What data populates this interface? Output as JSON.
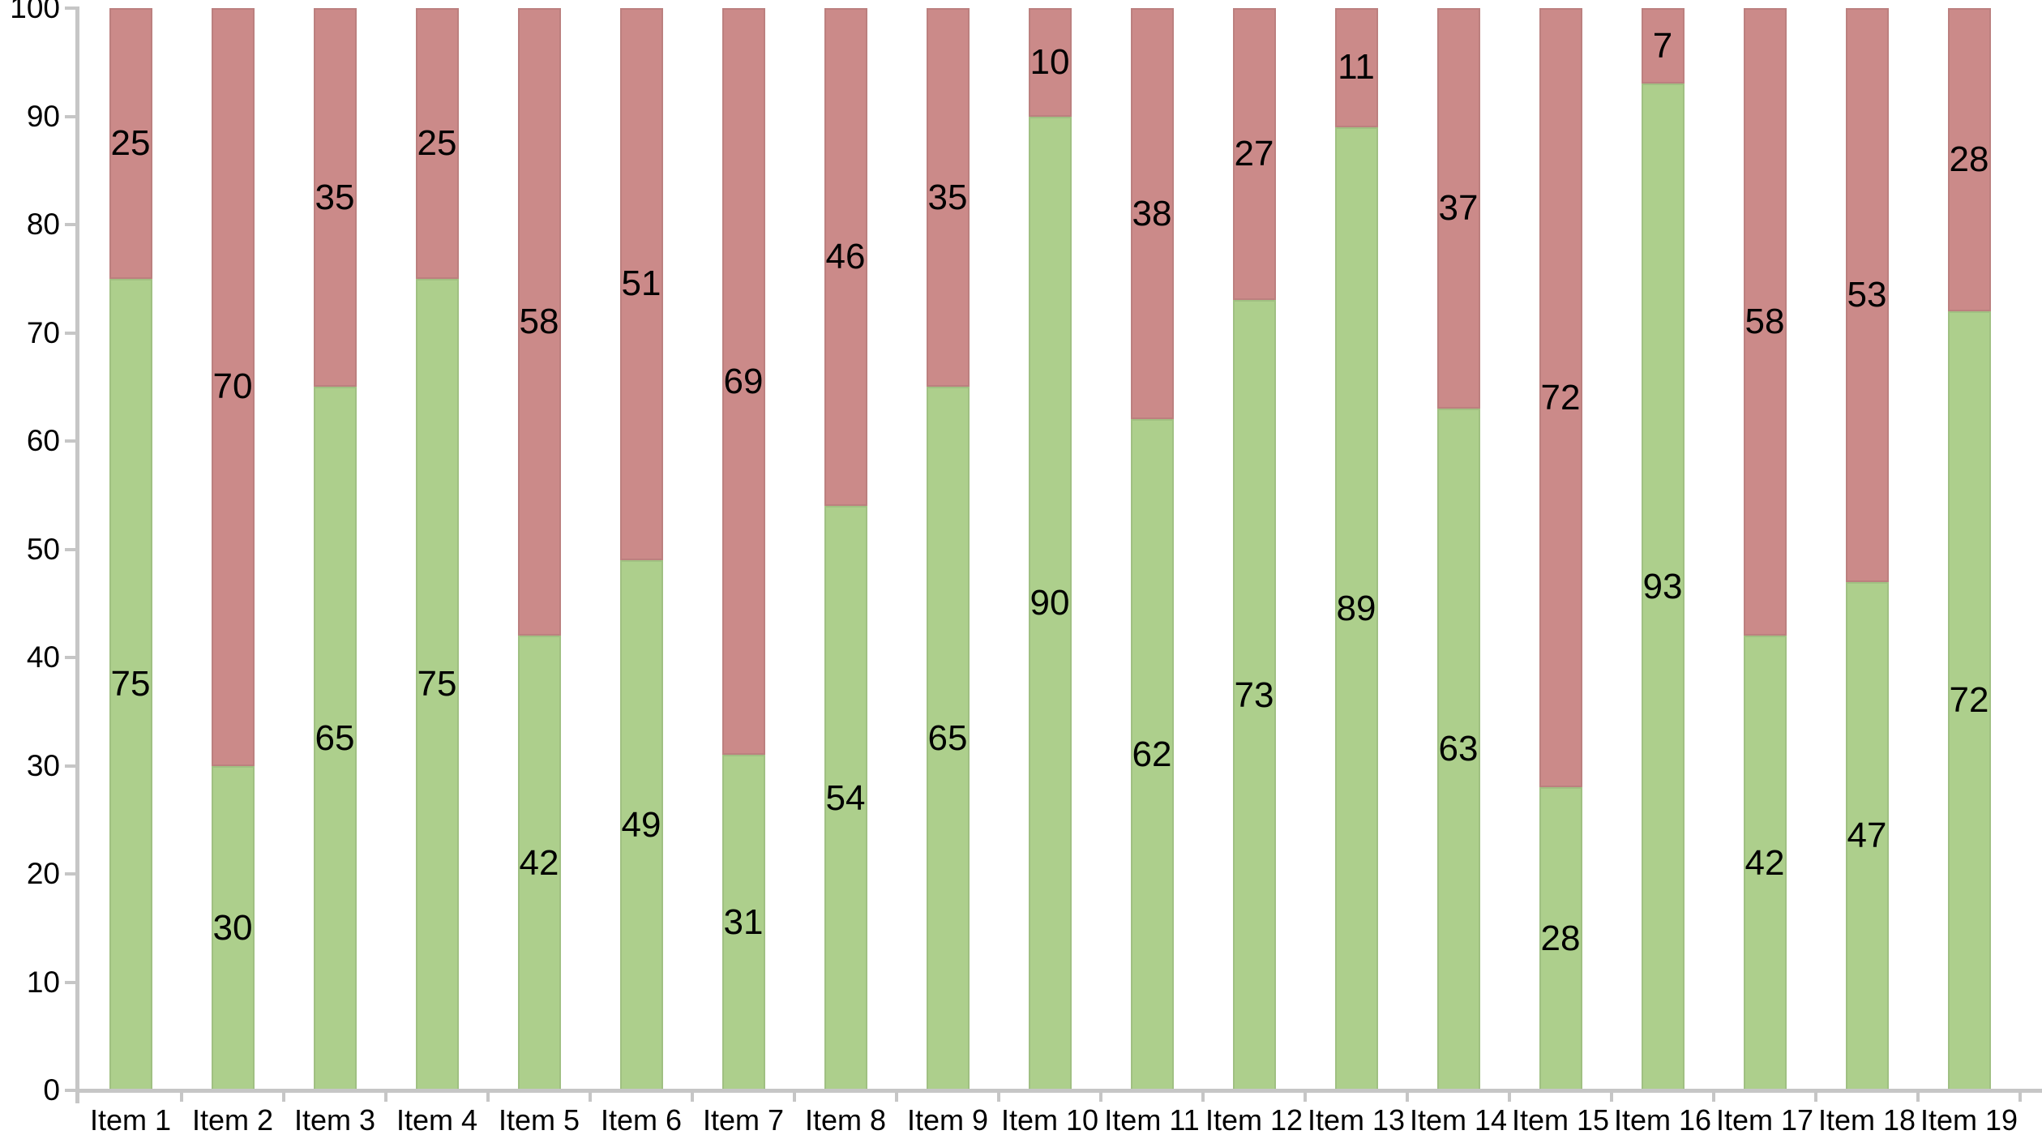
{
  "chart_data": {
    "type": "bar",
    "stacked": true,
    "title": "",
    "xlabel": "",
    "ylabel": "",
    "categories": [
      "Item 1",
      "Item 2",
      "Item 3",
      "Item 4",
      "Item 5",
      "Item 6",
      "Item 7",
      "Item 8",
      "Item 9",
      "Item 10",
      "Item 11",
      "Item 12",
      "Item 13",
      "Item 14",
      "Item 15",
      "Item 16",
      "Item 17",
      "Item 18",
      "Item 19"
    ],
    "series": [
      {
        "name": "bottom-green-segment",
        "color": "#ADCF8C",
        "values": [
          75,
          30,
          65,
          75,
          42,
          49,
          31,
          54,
          65,
          90,
          62,
          73,
          89,
          63,
          28,
          93,
          42,
          47,
          72
        ]
      },
      {
        "name": "top-red-segment",
        "color": "#CB8A89",
        "values": [
          25,
          70,
          35,
          25,
          58,
          51,
          69,
          46,
          35,
          10,
          38,
          27,
          11,
          37,
          72,
          7,
          58,
          53,
          28
        ]
      }
    ],
    "ylim": [
      0,
      100
    ],
    "yticks": [
      0,
      10,
      20,
      30,
      40,
      50,
      60,
      70,
      80,
      90,
      100
    ],
    "grid": false,
    "legend": "none",
    "value_labels": true,
    "axis_color": "#c6c6c6",
    "text_color": "#000000"
  }
}
